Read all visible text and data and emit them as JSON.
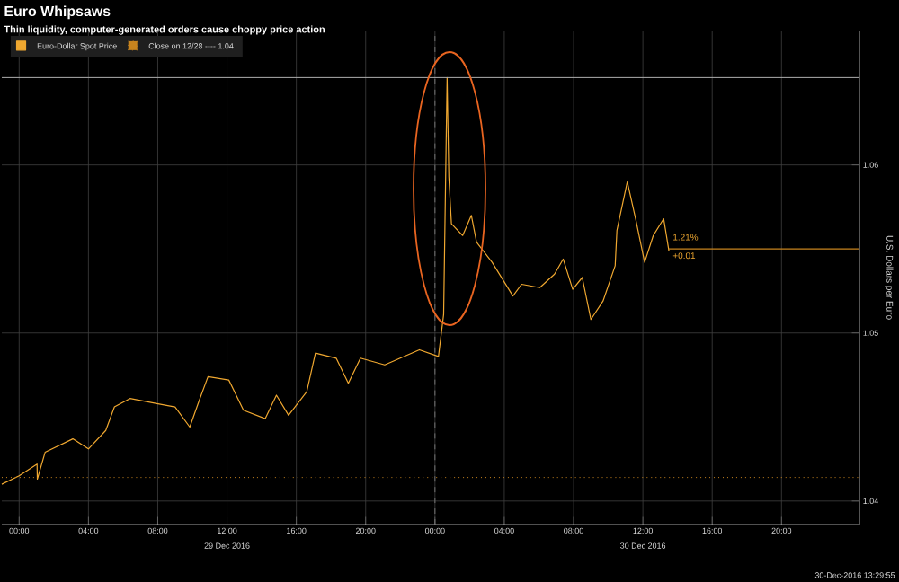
{
  "chart_data": {
    "type": "line",
    "title": "Euro Whipsaws",
    "subtitle": "Thin liquidity, computer-generated orders cause choppy price action",
    "ylabel": "U.S. Dollars per Euro",
    "xlim": [
      "2016-12-28T23:00",
      "2016-12-31T00:30"
    ],
    "ylim": [
      1.0386,
      1.068
    ],
    "xticks": [
      {
        "value": "2016-12-29T00:00",
        "label": "00:00"
      },
      {
        "value": "2016-12-29T04:00",
        "label": "04:00"
      },
      {
        "value": "2016-12-29T08:00",
        "label": "08:00"
      },
      {
        "value": "2016-12-29T12:00",
        "label": "12:00"
      },
      {
        "value": "2016-12-29T16:00",
        "label": "16:00"
      },
      {
        "value": "2016-12-29T20:00",
        "label": "20:00"
      },
      {
        "value": "2016-12-30T00:00",
        "label": "00:00"
      },
      {
        "value": "2016-12-30T04:00",
        "label": "04:00"
      },
      {
        "value": "2016-12-30T08:00",
        "label": "08:00"
      },
      {
        "value": "2016-12-30T12:00",
        "label": "12:00"
      },
      {
        "value": "2016-12-30T16:00",
        "label": "16:00"
      },
      {
        "value": "2016-12-30T20:00",
        "label": "20:00"
      }
    ],
    "yticks": [
      1.04,
      1.05,
      1.06
    ],
    "grid": true,
    "legend": "top left",
    "series": [
      {
        "name": "Euro-Dollar Spot Price",
        "color": "#f0a830",
        "x": [
          "2016-12-28T23:00",
          "2016-12-29T00:00",
          "2016-12-29T01:02",
          "2016-12-29T01:03",
          "2016-12-29T01:30",
          "2016-12-29T03:06",
          "2016-12-29T04:00",
          "2016-12-29T05:00",
          "2016-12-29T05:30",
          "2016-12-29T06:24",
          "2016-12-29T07:57",
          "2016-12-29T09:00",
          "2016-12-29T09:51",
          "2016-12-29T10:24",
          "2016-12-29T10:54",
          "2016-12-29T12:06",
          "2016-12-29T12:57",
          "2016-12-29T14:12",
          "2016-12-29T14:51",
          "2016-12-29T15:33",
          "2016-12-29T16:36",
          "2016-12-29T17:06",
          "2016-12-29T18:18",
          "2016-12-29T19:00",
          "2016-12-29T19:42",
          "2016-12-29T21:06",
          "2016-12-29T23:06",
          "2016-12-30T00:12",
          "2016-12-30T00:30",
          "2016-12-30T00:42",
          "2016-12-30T00:48",
          "2016-12-30T00:57",
          "2016-12-30T01:36",
          "2016-12-30T02:06",
          "2016-12-30T02:24",
          "2016-12-30T03:18",
          "2016-12-30T04:30",
          "2016-12-30T05:00",
          "2016-12-30T06:03",
          "2016-12-30T06:54",
          "2016-12-30T07:24",
          "2016-12-30T07:57",
          "2016-12-30T08:30",
          "2016-12-30T09:00",
          "2016-12-30T09:42",
          "2016-12-30T10:24",
          "2016-12-30T10:30",
          "2016-12-30T11:06",
          "2016-12-30T11:36",
          "2016-12-30T12:06",
          "2016-12-30T12:36",
          "2016-12-30T13:12",
          "2016-12-30T13:30"
        ],
        "values": [
          1.041,
          1.0415,
          1.0422,
          1.0413,
          1.0429,
          1.0437,
          1.0431,
          1.0442,
          1.0456,
          1.0461,
          1.0458,
          1.0456,
          1.0444,
          1.046,
          1.0474,
          1.0472,
          1.0454,
          1.0449,
          1.0463,
          1.0451,
          1.0465,
          1.0488,
          1.0485,
          1.047,
          1.0485,
          1.0481,
          1.049,
          1.0486,
          1.0511,
          1.0652,
          1.0593,
          1.0565,
          1.0558,
          1.057,
          1.0554,
          1.0542,
          1.0522,
          1.0529,
          1.0527,
          1.0535,
          1.0544,
          1.0526,
          1.0533,
          1.0508,
          1.0519,
          1.054,
          1.0561,
          1.059,
          1.0567,
          1.0542,
          1.0558,
          1.0568,
          1.0549
        ]
      },
      {
        "color": "#c8841e",
        "x": [
          "2016-12-30T13:30",
          "2016-12-31T00:30"
        ],
        "values": [
          1.055,
          1.055
        ]
      }
    ],
    "ref_lines": [
      {
        "axis": "y",
        "value": 1.0414,
        "label": "Close on 12/28 ---- 1.04",
        "color": "#c8841e",
        "line_style": "dotted"
      },
      {
        "axis": "y",
        "value": 1.0652,
        "color": "#b0b0b0"
      },
      {
        "axis": "x",
        "value": "2016-12-30T00:00",
        "color": "#707070",
        "line_style": "dashed"
      }
    ],
    "annotations": [
      {
        "text": "1.21%",
        "x": "2016-12-30T13:36",
        "y": 1.0557
      },
      {
        "text": "+0.01",
        "x": "2016-12-30T13:36",
        "y": 1.0546
      },
      "29 Dec 2016",
      "30 Dec 2016",
      "30-Dec-2016 13:29:55"
    ]
  }
}
